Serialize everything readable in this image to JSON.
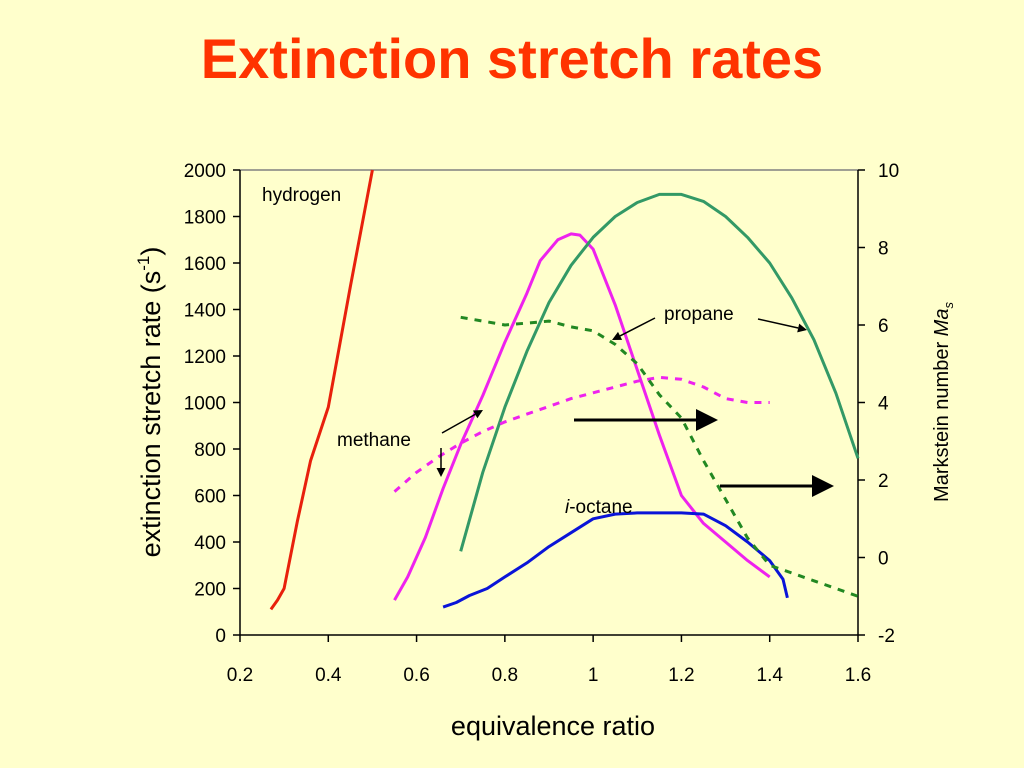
{
  "title": "Extinction stretch rates",
  "chart_data": {
    "type": "line",
    "xlabel": "equivalence ratio",
    "ylabel_left": "extinction stretch rate (s",
    "ylabel_left_sup": "-1",
    "ylabel_left_close": ")",
    "ylabel_right": "Markstein number ",
    "ylabel_right_italic": "Ma",
    "ylabel_right_sub": "s",
    "xlim": [
      0.2,
      1.6
    ],
    "ylim_left": [
      0,
      2000
    ],
    "ylim_right": [
      -2,
      10
    ],
    "x_ticks": [
      "0.2",
      "0.4",
      "0.6",
      "0.8",
      "1",
      "1.2",
      "1.4",
      "1.6"
    ],
    "y_left_ticks": [
      "0",
      "200",
      "400",
      "600",
      "800",
      "1000",
      "1200",
      "1400",
      "1600",
      "1800",
      "2000"
    ],
    "y_right_ticks": [
      "-2",
      "0",
      "2",
      "4",
      "6",
      "8",
      "10"
    ],
    "grid": false,
    "series": [
      {
        "name": "hydrogen",
        "axis": "left",
        "style": "solid",
        "color": "#e8200c",
        "x": [
          0.27,
          0.285,
          0.3,
          0.33,
          0.36,
          0.4,
          0.45,
          0.5
        ],
        "y": [
          110,
          150,
          200,
          490,
          750,
          980,
          1500,
          2000
        ]
      },
      {
        "name": "methane",
        "axis": "left",
        "style": "solid",
        "color": "#ee22ee",
        "x": [
          0.55,
          0.58,
          0.62,
          0.66,
          0.7,
          0.75,
          0.8,
          0.85,
          0.88,
          0.92,
          0.95,
          0.97,
          1.0,
          1.05,
          1.1,
          1.15,
          1.2,
          1.25,
          1.3,
          1.35,
          1.4
        ],
        "y": [
          150,
          250,
          420,
          630,
          820,
          1030,
          1260,
          1470,
          1610,
          1700,
          1725,
          1720,
          1660,
          1420,
          1140,
          860,
          600,
          480,
          400,
          320,
          250
        ]
      },
      {
        "name": "propane",
        "axis": "left",
        "style": "solid",
        "color": "#339966",
        "x": [
          0.7,
          0.75,
          0.8,
          0.85,
          0.9,
          0.95,
          1.0,
          1.05,
          1.1,
          1.15,
          1.2,
          1.25,
          1.3,
          1.35,
          1.4,
          1.45,
          1.5,
          1.55,
          1.6
        ],
        "y": [
          360,
          700,
          980,
          1220,
          1430,
          1590,
          1710,
          1800,
          1860,
          1895,
          1895,
          1865,
          1800,
          1710,
          1600,
          1450,
          1270,
          1040,
          760
        ]
      },
      {
        "name": "i-octane",
        "axis": "left",
        "style": "solid",
        "color": "#0a14d8",
        "x": [
          0.66,
          0.69,
          0.72,
          0.76,
          0.8,
          0.85,
          0.9,
          0.95,
          1.0,
          1.05,
          1.1,
          1.15,
          1.2,
          1.25,
          1.3,
          1.35,
          1.4,
          1.43,
          1.44
        ],
        "y": [
          120,
          140,
          170,
          200,
          250,
          310,
          380,
          440,
          500,
          520,
          525,
          525,
          525,
          520,
          470,
          400,
          320,
          240,
          160
        ]
      },
      {
        "name": "methane Ma",
        "axis": "right",
        "style": "dashed",
        "color": "#ee22ee",
        "x": [
          0.55,
          0.6,
          0.65,
          0.7,
          0.75,
          0.8,
          0.85,
          0.9,
          0.95,
          1.0,
          1.05,
          1.1,
          1.15,
          1.2,
          1.25,
          1.3,
          1.35,
          1.4
        ],
        "y": [
          1.7,
          2.2,
          2.6,
          2.95,
          3.25,
          3.5,
          3.7,
          3.9,
          4.1,
          4.25,
          4.4,
          4.55,
          4.65,
          4.6,
          4.4,
          4.1,
          4.0,
          4.0
        ]
      },
      {
        "name": "propane Ma",
        "axis": "right",
        "style": "dashed",
        "color": "#228822",
        "x": [
          0.7,
          0.75,
          0.8,
          0.85,
          0.9,
          0.95,
          1.0,
          1.05,
          1.1,
          1.15,
          1.2,
          1.25,
          1.3,
          1.35,
          1.4,
          1.45,
          1.5,
          1.55,
          1.6
        ],
        "y": [
          6.2,
          6.1,
          6.0,
          6.05,
          6.1,
          5.95,
          5.85,
          5.5,
          5.0,
          4.2,
          3.6,
          2.5,
          1.5,
          0.5,
          -0.2,
          -0.4,
          -0.6,
          -0.8,
          -1.0
        ]
      }
    ],
    "annotations": {
      "hydrogen": "hydrogen",
      "methane": "methane",
      "propane": "propane",
      "octane_italic": "i",
      "octane_rest": "-octane"
    }
  }
}
